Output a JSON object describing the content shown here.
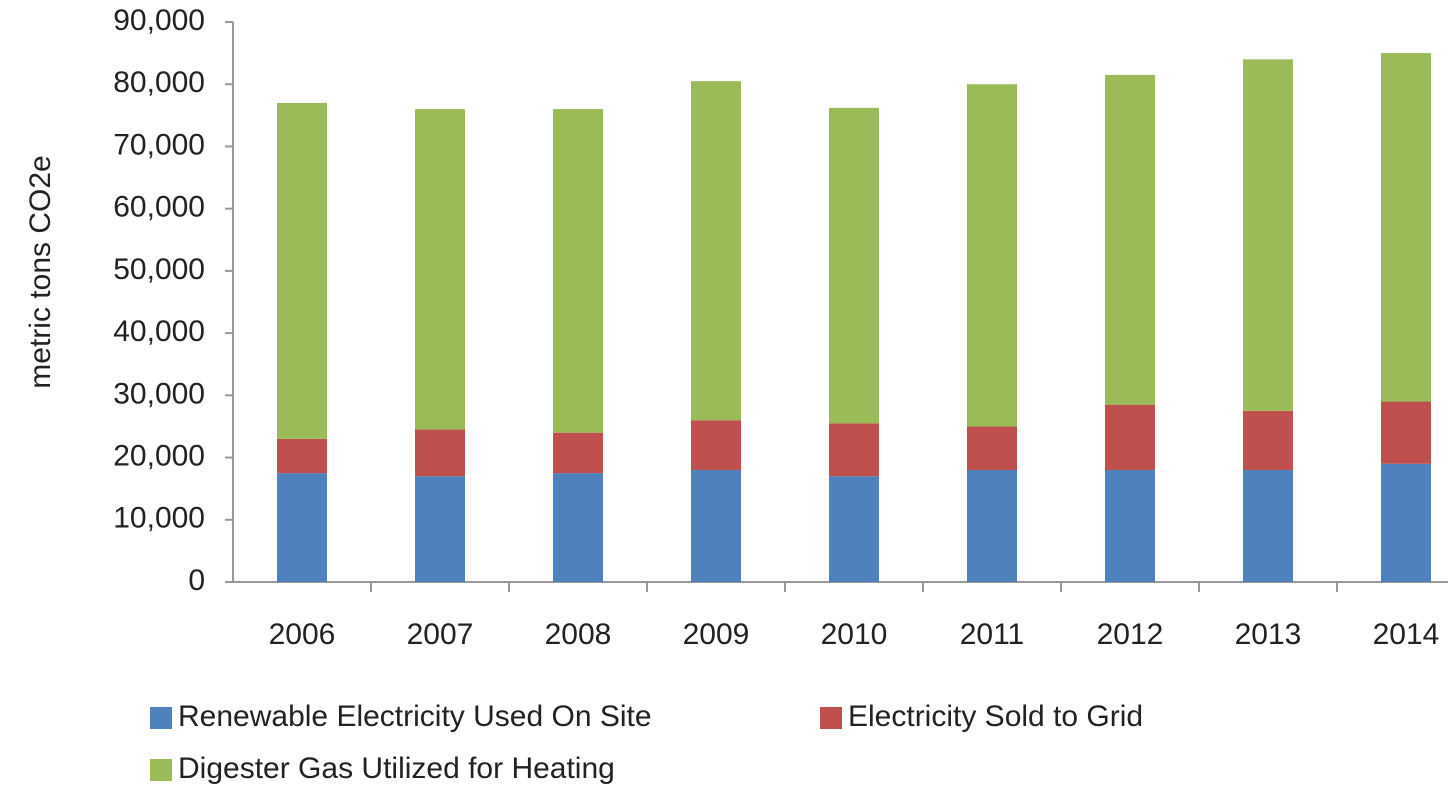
{
  "chart_data": {
    "type": "stacked_bar",
    "y_label": "metric tons CO2e",
    "categories": [
      "2006",
      "2007",
      "2008",
      "2009",
      "2010",
      "2011",
      "2012",
      "2013",
      "2014"
    ],
    "series": [
      {
        "name": "Renewable Electricity Used On Site",
        "color": "#4f81bd",
        "values": [
          17500,
          17000,
          17500,
          18000,
          17000,
          18000,
          18000,
          18000,
          19000
        ]
      },
      {
        "name": "Electricity Sold to Grid",
        "color": "#c0504d",
        "values": [
          5500,
          7500,
          6500,
          8000,
          8500,
          7000,
          10500,
          9500,
          10000
        ]
      },
      {
        "name": "Digester Gas Utilized for Heating",
        "color": "#9bbb59",
        "values": [
          54000,
          51500,
          52000,
          54500,
          50700,
          55000,
          53000,
          56500,
          56000
        ]
      }
    ],
    "ylim": [
      0,
      90000
    ],
    "yticks": [
      0,
      {
        "value": 10000,
        "label": "10,000"
      },
      {
        "value": 20000,
        "label": "20,000"
      },
      {
        "value": 30000,
        "label": "30,000"
      },
      {
        "value": 40000,
        "label": "40,000"
      },
      {
        "value": 50000,
        "label": "50,000"
      },
      {
        "value": 60000,
        "label": "60,000"
      },
      {
        "value": 70000,
        "label": "70,000"
      },
      {
        "value": 80000,
        "label": "80,000"
      },
      {
        "value": 90000,
        "label": "90,000"
      }
    ],
    "legend": "bottom"
  }
}
